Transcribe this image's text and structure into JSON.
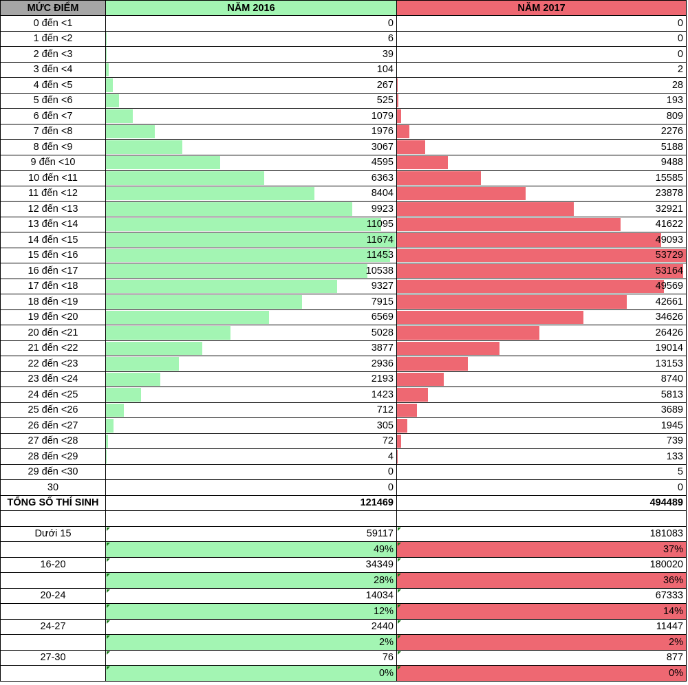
{
  "colors": {
    "green": "#a3f5b3",
    "red": "#ee6872",
    "header_gray": "#a6a6a6"
  },
  "header": {
    "col_label": "MỨC ĐIỂM",
    "col_2016": "NĂM 2016",
    "col_2017": "NĂM 2017"
  },
  "chart_data": {
    "type": "bar",
    "categories": [
      "0 đến <1",
      "1 đến <2",
      "2 đến <3",
      "3 đến <4",
      "4 đến <5",
      "5 đến <6",
      "6 đến <7",
      "7 đến <8",
      "8 đến <9",
      "9 đến <10",
      "10 đến <11",
      "11 đến <12",
      "12 đến <13",
      "13 đến <14",
      "14 đến <15",
      "15 đến <16",
      "16 đến <17",
      "17 đến <18",
      "18 đến <19",
      "19 đến <20",
      "20 đến <21",
      "21 đến <22",
      "22 đến <23",
      "23 đến <24",
      "24 đến <25",
      "25 đến <26",
      "26 đến <27",
      "27 đến <28",
      "28 đến <29",
      "29 đến <30",
      "30"
    ],
    "series": [
      {
        "name": "NĂM 2016",
        "values": [
          0,
          6,
          39,
          104,
          267,
          525,
          1079,
          1976,
          3067,
          4595,
          6363,
          8404,
          9923,
          11095,
          11674,
          11453,
          10538,
          9327,
          7915,
          6569,
          5028,
          3877,
          2936,
          2193,
          1423,
          712,
          305,
          72,
          4,
          0,
          0
        ]
      },
      {
        "name": "NĂM 2017",
        "values": [
          0,
          0,
          0,
          2,
          28,
          193,
          809,
          2276,
          5188,
          9488,
          15585,
          23878,
          32921,
          41622,
          49093,
          53729,
          53164,
          49569,
          42661,
          34626,
          26426,
          19014,
          13153,
          8740,
          5813,
          3689,
          1945,
          739,
          133,
          5,
          0
        ]
      }
    ]
  },
  "totals": {
    "label": "TỔNG SỐ THÍ SINH",
    "v2016": "121469",
    "v2017": "494489"
  },
  "groups": [
    {
      "label": "Dưới 15",
      "v2016": "59117",
      "v2017": "181083",
      "p2016": "49%",
      "p2017": "37%"
    },
    {
      "label": "16-20",
      "v2016": "34349",
      "v2017": "180020",
      "p2016": "28%",
      "p2017": "36%"
    },
    {
      "label": "20-24",
      "v2016": "14034",
      "v2017": "67333",
      "p2016": "12%",
      "p2017": "14%"
    },
    {
      "label": "24-27",
      "v2016": "2440",
      "v2017": "11447",
      "p2016": "2%",
      "p2017": "2%"
    },
    {
      "label": "27-30",
      "v2016": "76",
      "v2017": "877",
      "p2016": "0%",
      "p2017": "0%"
    }
  ]
}
